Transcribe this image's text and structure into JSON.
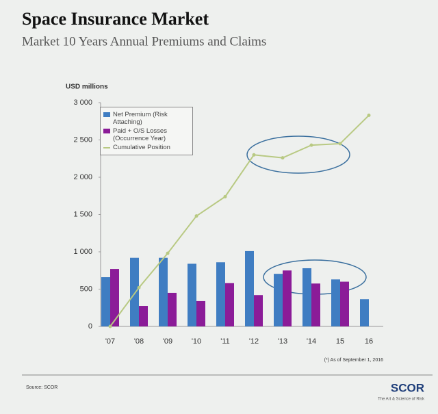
{
  "chart_data": {
    "type": "bar",
    "title": "Space Insurance Market",
    "subtitle": "Market 10 Years Annual Premiums and Claims",
    "y_label": "USD millions",
    "categories": [
      "'07",
      "'08",
      "'09",
      "'10",
      "'11",
      "'12",
      "'13",
      "'14",
      "15",
      "16"
    ],
    "series": [
      {
        "name": "Net Premium (Risk Attaching)",
        "type": "bar",
        "color": "#3f7dc2",
        "values": [
          660,
          920,
          920,
          840,
          860,
          1010,
          705,
          780,
          630,
          365
        ]
      },
      {
        "name": "Paid + O/S Losses (Occurrence Year)",
        "type": "bar",
        "color": "#8b1c98",
        "values": [
          770,
          275,
          450,
          340,
          580,
          420,
          750,
          575,
          600,
          null
        ]
      },
      {
        "name": "Cumulative Position",
        "type": "line",
        "color": "#b8c982",
        "values": [
          0,
          520,
          980,
          1480,
          1740,
          2300,
          2260,
          2430,
          2450,
          2830
        ]
      }
    ],
    "ylim": [
      0,
      3000
    ],
    "yticks": [
      0,
      500,
      {
        "value": 1000,
        "label": "1 000"
      },
      {
        "value": 1500,
        "label": "1 500"
      },
      {
        "value": 2000,
        "label": "2 000"
      },
      {
        "value": 2500,
        "label": "2 500"
      },
      {
        "value": 3000,
        "label": "3 000"
      }
    ],
    "grid": false,
    "legend": "top-left",
    "footnote": "(*) As of September 1, 2016",
    "source": "Source: SCOR",
    "logo": "SCOR",
    "tagline": "The Art & Science of Risk"
  }
}
